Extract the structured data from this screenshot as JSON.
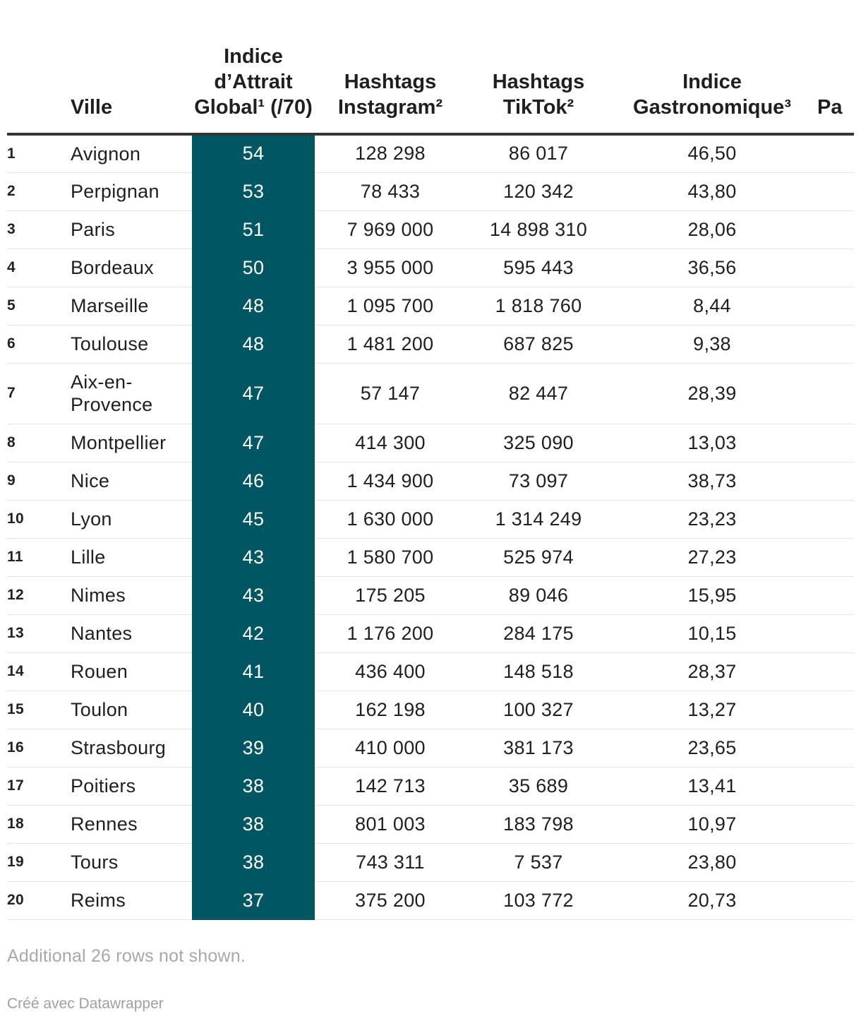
{
  "chart_data": {
    "type": "table",
    "columns": {
      "rank": "",
      "ville": "Ville",
      "score": "Indice d’Attrait Global¹ (/70)",
      "instagram": "Hashtags Instagram²",
      "tiktok": "Hashtags TikTok²",
      "gastro": "Indice Gastronomique³",
      "clipped": "Pa"
    },
    "rows": [
      {
        "rank": "1",
        "ville": "Avignon",
        "score": "54",
        "instagram": "128 298",
        "tiktok": "86 017",
        "gastro": "46,50"
      },
      {
        "rank": "2",
        "ville": "Perpignan",
        "score": "53",
        "instagram": "78 433",
        "tiktok": "120 342",
        "gastro": "43,80"
      },
      {
        "rank": "3",
        "ville": "Paris",
        "score": "51",
        "instagram": "7 969 000",
        "tiktok": "14 898 310",
        "gastro": "28,06"
      },
      {
        "rank": "4",
        "ville": "Bordeaux",
        "score": "50",
        "instagram": "3 955 000",
        "tiktok": "595 443",
        "gastro": "36,56"
      },
      {
        "rank": "5",
        "ville": "Marseille",
        "score": "48",
        "instagram": "1 095 700",
        "tiktok": "1 818 760",
        "gastro": "8,44"
      },
      {
        "rank": "6",
        "ville": "Toulouse",
        "score": "48",
        "instagram": "1 481 200",
        "tiktok": "687 825",
        "gastro": "9,38"
      },
      {
        "rank": "7",
        "ville": "Aix-en-Provence",
        "score": "47",
        "instagram": "57 147",
        "tiktok": "82 447",
        "gastro": "28,39"
      },
      {
        "rank": "8",
        "ville": "Montpellier",
        "score": "47",
        "instagram": "414 300",
        "tiktok": "325 090",
        "gastro": "13,03"
      },
      {
        "rank": "9",
        "ville": "Nice",
        "score": "46",
        "instagram": "1 434 900",
        "tiktok": "73 097",
        "gastro": "38,73"
      },
      {
        "rank": "10",
        "ville": "Lyon",
        "score": "45",
        "instagram": "1 630 000",
        "tiktok": "1 314 249",
        "gastro": "23,23"
      },
      {
        "rank": "11",
        "ville": "Lille",
        "score": "43",
        "instagram": "1 580 700",
        "tiktok": "525 974",
        "gastro": "27,23"
      },
      {
        "rank": "12",
        "ville": "Nimes",
        "score": "43",
        "instagram": "175 205",
        "tiktok": "89 046",
        "gastro": "15,95"
      },
      {
        "rank": "13",
        "ville": "Nantes",
        "score": "42",
        "instagram": "1 176 200",
        "tiktok": "284 175",
        "gastro": "10,15"
      },
      {
        "rank": "14",
        "ville": "Rouen",
        "score": "41",
        "instagram": "436 400",
        "tiktok": "148 518",
        "gastro": "28,37"
      },
      {
        "rank": "15",
        "ville": "Toulon",
        "score": "40",
        "instagram": "162 198",
        "tiktok": "100 327",
        "gastro": "13,27"
      },
      {
        "rank": "16",
        "ville": "Strasbourg",
        "score": "39",
        "instagram": "410 000",
        "tiktok": "381 173",
        "gastro": "23,65"
      },
      {
        "rank": "17",
        "ville": "Poitiers",
        "score": "38",
        "instagram": "142 713",
        "tiktok": "35 689",
        "gastro": "13,41"
      },
      {
        "rank": "18",
        "ville": "Rennes",
        "score": "38",
        "instagram": "801 003",
        "tiktok": "183 798",
        "gastro": "10,97"
      },
      {
        "rank": "19",
        "ville": "Tours",
        "score": "38",
        "instagram": "743 311",
        "tiktok": "7 537",
        "gastro": "23,80"
      },
      {
        "rank": "20",
        "ville": "Reims",
        "score": "37",
        "instagram": "375 200",
        "tiktok": "103 772",
        "gastro": "20,73"
      }
    ],
    "highlight_color": "#005662",
    "footnote": "Additional 26 rows not shown.",
    "credit": "Créé avec Datawrapper"
  }
}
